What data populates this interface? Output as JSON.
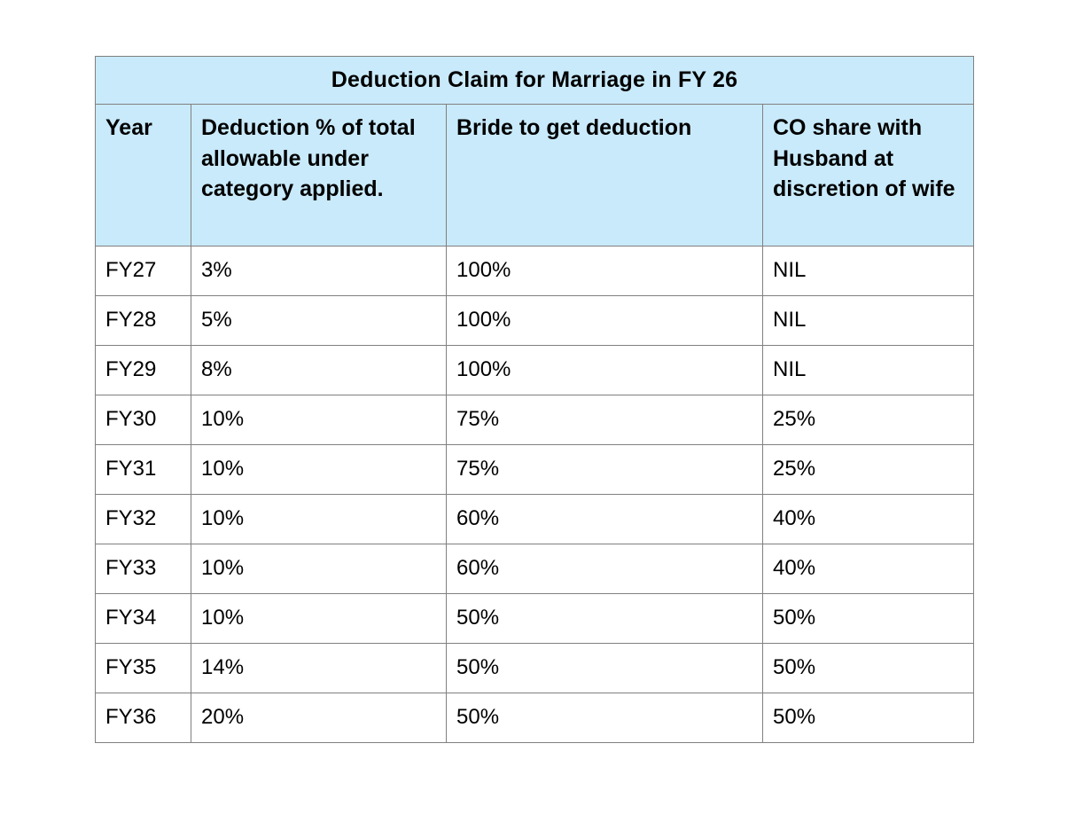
{
  "page": {
    "background_color": "#ffffff"
  },
  "table": {
    "title": "Deduction Claim for Marriage in FY 26",
    "header_bg_color": "#c9eafb",
    "border_color": "#808080",
    "text_color": "#000000",
    "columns": [
      "Year",
      "Deduction % of total allowable under category applied.",
      "Bride to get deduction",
      "CO share with Husband at discretion of wife"
    ],
    "rows": [
      [
        "FY27",
        "3%",
        "100%",
        "NIL"
      ],
      [
        "FY28",
        "5%",
        "100%",
        "NIL"
      ],
      [
        "FY29",
        "8%",
        "100%",
        "NIL"
      ],
      [
        "FY30",
        "10%",
        "75%",
        "25%"
      ],
      [
        "FY31",
        "10%",
        "75%",
        "25%"
      ],
      [
        "FY32",
        "10%",
        "60%",
        "40%"
      ],
      [
        "FY33",
        "10%",
        "60%",
        "40%"
      ],
      [
        "FY34",
        "10%",
        "50%",
        "50%"
      ],
      [
        "FY35",
        "14%",
        "50%",
        "50%"
      ],
      [
        "FY36",
        "20%",
        "50%",
        "50%"
      ]
    ]
  },
  "chart_data": {
    "type": "table",
    "title": "Deduction Claim for Marriage in FY 26",
    "columns": [
      "Year",
      "Deduction % of total allowable under category applied.",
      "Bride to get deduction",
      "CO share with Husband at discretion of wife"
    ],
    "rows": [
      [
        "FY27",
        "3%",
        "100%",
        "NIL"
      ],
      [
        "FY28",
        "5%",
        "100%",
        "NIL"
      ],
      [
        "FY29",
        "8%",
        "100%",
        "NIL"
      ],
      [
        "FY30",
        "10%",
        "75%",
        "25%"
      ],
      [
        "FY31",
        "10%",
        "75%",
        "25%"
      ],
      [
        "FY32",
        "10%",
        "60%",
        "40%"
      ],
      [
        "FY33",
        "10%",
        "60%",
        "40%"
      ],
      [
        "FY34",
        "10%",
        "50%",
        "50%"
      ],
      [
        "FY35",
        "14%",
        "50%",
        "50%"
      ],
      [
        "FY36",
        "20%",
        "50%",
        "50%"
      ]
    ]
  }
}
